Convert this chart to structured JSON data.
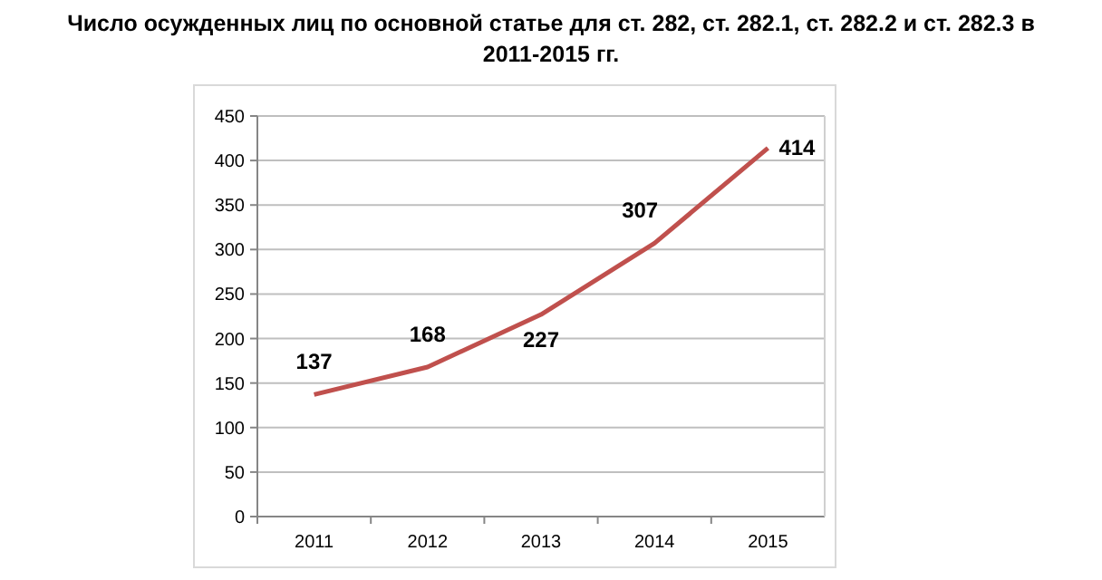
{
  "chart_data": {
    "type": "line",
    "title": "Число осужденных лиц по основной статье для ст. 282, ст. 282.1, ст. 282.2 и ст. 282.3 в 2011-2015 гг.",
    "categories": [
      "2011",
      "2012",
      "2013",
      "2014",
      "2015"
    ],
    "series": [
      {
        "color": "#c0504d",
        "values": [
          137,
          168,
          227,
          307,
          414
        ]
      }
    ],
    "ylim": [
      0,
      450
    ],
    "yticks": [
      0,
      50,
      100,
      150,
      200,
      250,
      300,
      350,
      400,
      450
    ],
    "grid": "y",
    "data_labels": true,
    "marker": "none"
  }
}
